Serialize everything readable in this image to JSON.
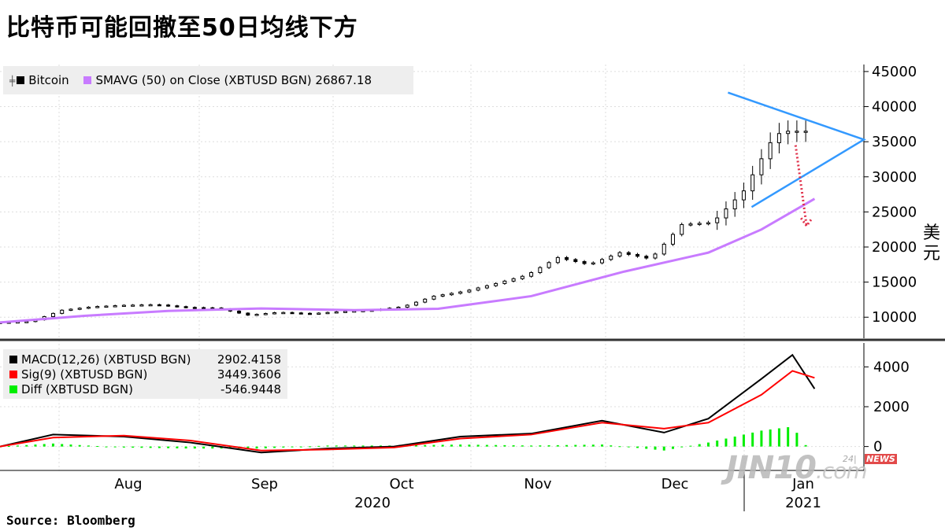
{
  "title": "比特币可能回撤至50日均线下方",
  "source": "Source:  Bloomberg",
  "y_unit_label": "美元",
  "watermark": {
    "main": "JIN10",
    "suffix": ".com",
    "tag": "24|",
    "news": "NEWS"
  },
  "legend_top": [
    {
      "icon": "candlestick-icon",
      "label": "Bitcoin",
      "color": "#000000"
    },
    {
      "label": "SMAVG (50)  on Close (XBTUSD BGN) 26867.18",
      "color": "#c87bff"
    }
  ],
  "legend_bottom": [
    {
      "label": "MACD(12,26) (XBTUSD BGN)",
      "value": "2902.4158",
      "color": "#000000"
    },
    {
      "label": "Sig(9) (XBTUSD BGN)",
      "value": "3449.3606",
      "color": "#ff0000"
    },
    {
      "label": "Diff (XBTUSD BGN)",
      "value": "-546.9448",
      "color": "#00ee00"
    }
  ],
  "chart_data": [
    {
      "type": "line",
      "title": "比特币可能回撤至50日均线下方",
      "ylabel": "美元",
      "ylim": [
        7000,
        46000
      ],
      "yticks": [
        "10000",
        "15000",
        "20000",
        "25000",
        "30000",
        "35000",
        "40000",
        "45000"
      ],
      "x_ticks": [
        "Aug",
        "Sep",
        "Oct",
        "Nov",
        "Dec",
        "Jan"
      ],
      "x_year_labels": [
        "2020",
        "2021"
      ],
      "series": [
        {
          "name": "Bitcoin",
          "type": "candlestick",
          "x": [
            "Jul 13",
            "Jul 20",
            "Jul 27",
            "Aug 3",
            "Aug 10",
            "Aug 17",
            "Aug 24",
            "Aug 31",
            "Sep 7",
            "Sep 14",
            "Sep 21",
            "Sep 28",
            "Oct 5",
            "Oct 12",
            "Oct 19",
            "Oct 26",
            "Nov 2",
            "Nov 9",
            "Nov 16",
            "Nov 23",
            "Nov 30",
            "Dec 7",
            "Dec 14",
            "Dec 21",
            "Dec 28",
            "Jan 4",
            "Jan 7"
          ],
          "values": [
            9250,
            9400,
            11000,
            11500,
            11700,
            11800,
            11400,
            11300,
            10300,
            10700,
            10500,
            10800,
            11000,
            11500,
            13000,
            13700,
            14800,
            16000,
            18500,
            17500,
            19200,
            18300,
            23200,
            23500,
            28000,
            36000,
            36500
          ]
        },
        {
          "name": "SMAVG (50)  on Close (XBTUSD BGN) 26867.18",
          "x": [
            "Jul 13",
            "Aug 1",
            "Aug 20",
            "Sep 10",
            "Oct 1",
            "Oct 20",
            "Nov 10",
            "Dec 1",
            "Dec 20",
            "Jan 1",
            "Jan 13"
          ],
          "values": [
            9250,
            10200,
            10900,
            11250,
            11000,
            11200,
            13000,
            16500,
            19200,
            22500,
            26867
          ]
        }
      ],
      "annotations": [
        {
          "type": "symmetric-triangle",
          "color": "#3399ff"
        },
        {
          "type": "down-arrow-dotted",
          "color": "#e0304a"
        }
      ]
    },
    {
      "type": "line",
      "ylim": [
        -1200,
        5200
      ],
      "yticks": [
        "0",
        "2000",
        "4000"
      ],
      "series": [
        {
          "name": "MACD(12,26) (XBTUSD BGN)",
          "x": [
            "Jul 13",
            "Jul 25",
            "Aug 10",
            "Aug 25",
            "Sep 10",
            "Sep 25",
            "Oct 10",
            "Oct 25",
            "Nov 10",
            "Nov 26",
            "Dec 10",
            "Dec 20",
            "Jan 1",
            "Jan 8",
            "Jan 13"
          ],
          "values": [
            0,
            600,
            500,
            200,
            -300,
            -100,
            0,
            500,
            650,
            1300,
            700,
            1400,
            3400,
            4600,
            2902
          ]
        },
        {
          "name": "Sig(9) (XBTUSD BGN)",
          "x": [
            "Jul 13",
            "Jul 25",
            "Aug 10",
            "Aug 25",
            "Sep 10",
            "Sep 25",
            "Oct 10",
            "Oct 25",
            "Nov 10",
            "Nov 26",
            "Dec 10",
            "Dec 20",
            "Jan 1",
            "Jan 8",
            "Jan 13"
          ],
          "values": [
            0,
            450,
            550,
            300,
            -200,
            -150,
            -50,
            400,
            600,
            1200,
            900,
            1200,
            2600,
            3800,
            3449
          ]
        },
        {
          "name": "Diff (XBTUSD BGN)",
          "type": "bar",
          "values": [
            0,
            150,
            -50,
            -100,
            -100,
            50,
            50,
            100,
            50,
            100,
            -200,
            200,
            800,
            1000,
            -547
          ]
        }
      ]
    }
  ]
}
